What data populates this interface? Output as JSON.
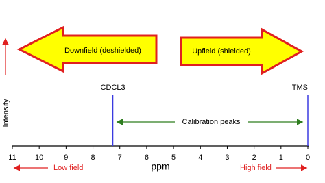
{
  "arrows": {
    "downfield": "Downfield (deshielded)",
    "upfield": "Upfield (shielded)"
  },
  "y_axis_label": "Intensity",
  "calibration_label": "Calibration peaks",
  "axis": {
    "label": "ppm",
    "xlim": [
      11,
      0
    ],
    "ticks": [
      11,
      10,
      9,
      8,
      7,
      6,
      5,
      4,
      3,
      2,
      1,
      0
    ]
  },
  "peaks": [
    {
      "label": "CDCL3",
      "position": 7.26
    },
    {
      "label": "TMS",
      "position": 0
    }
  ],
  "low_field": "Low field",
  "high_field": "High field"
}
